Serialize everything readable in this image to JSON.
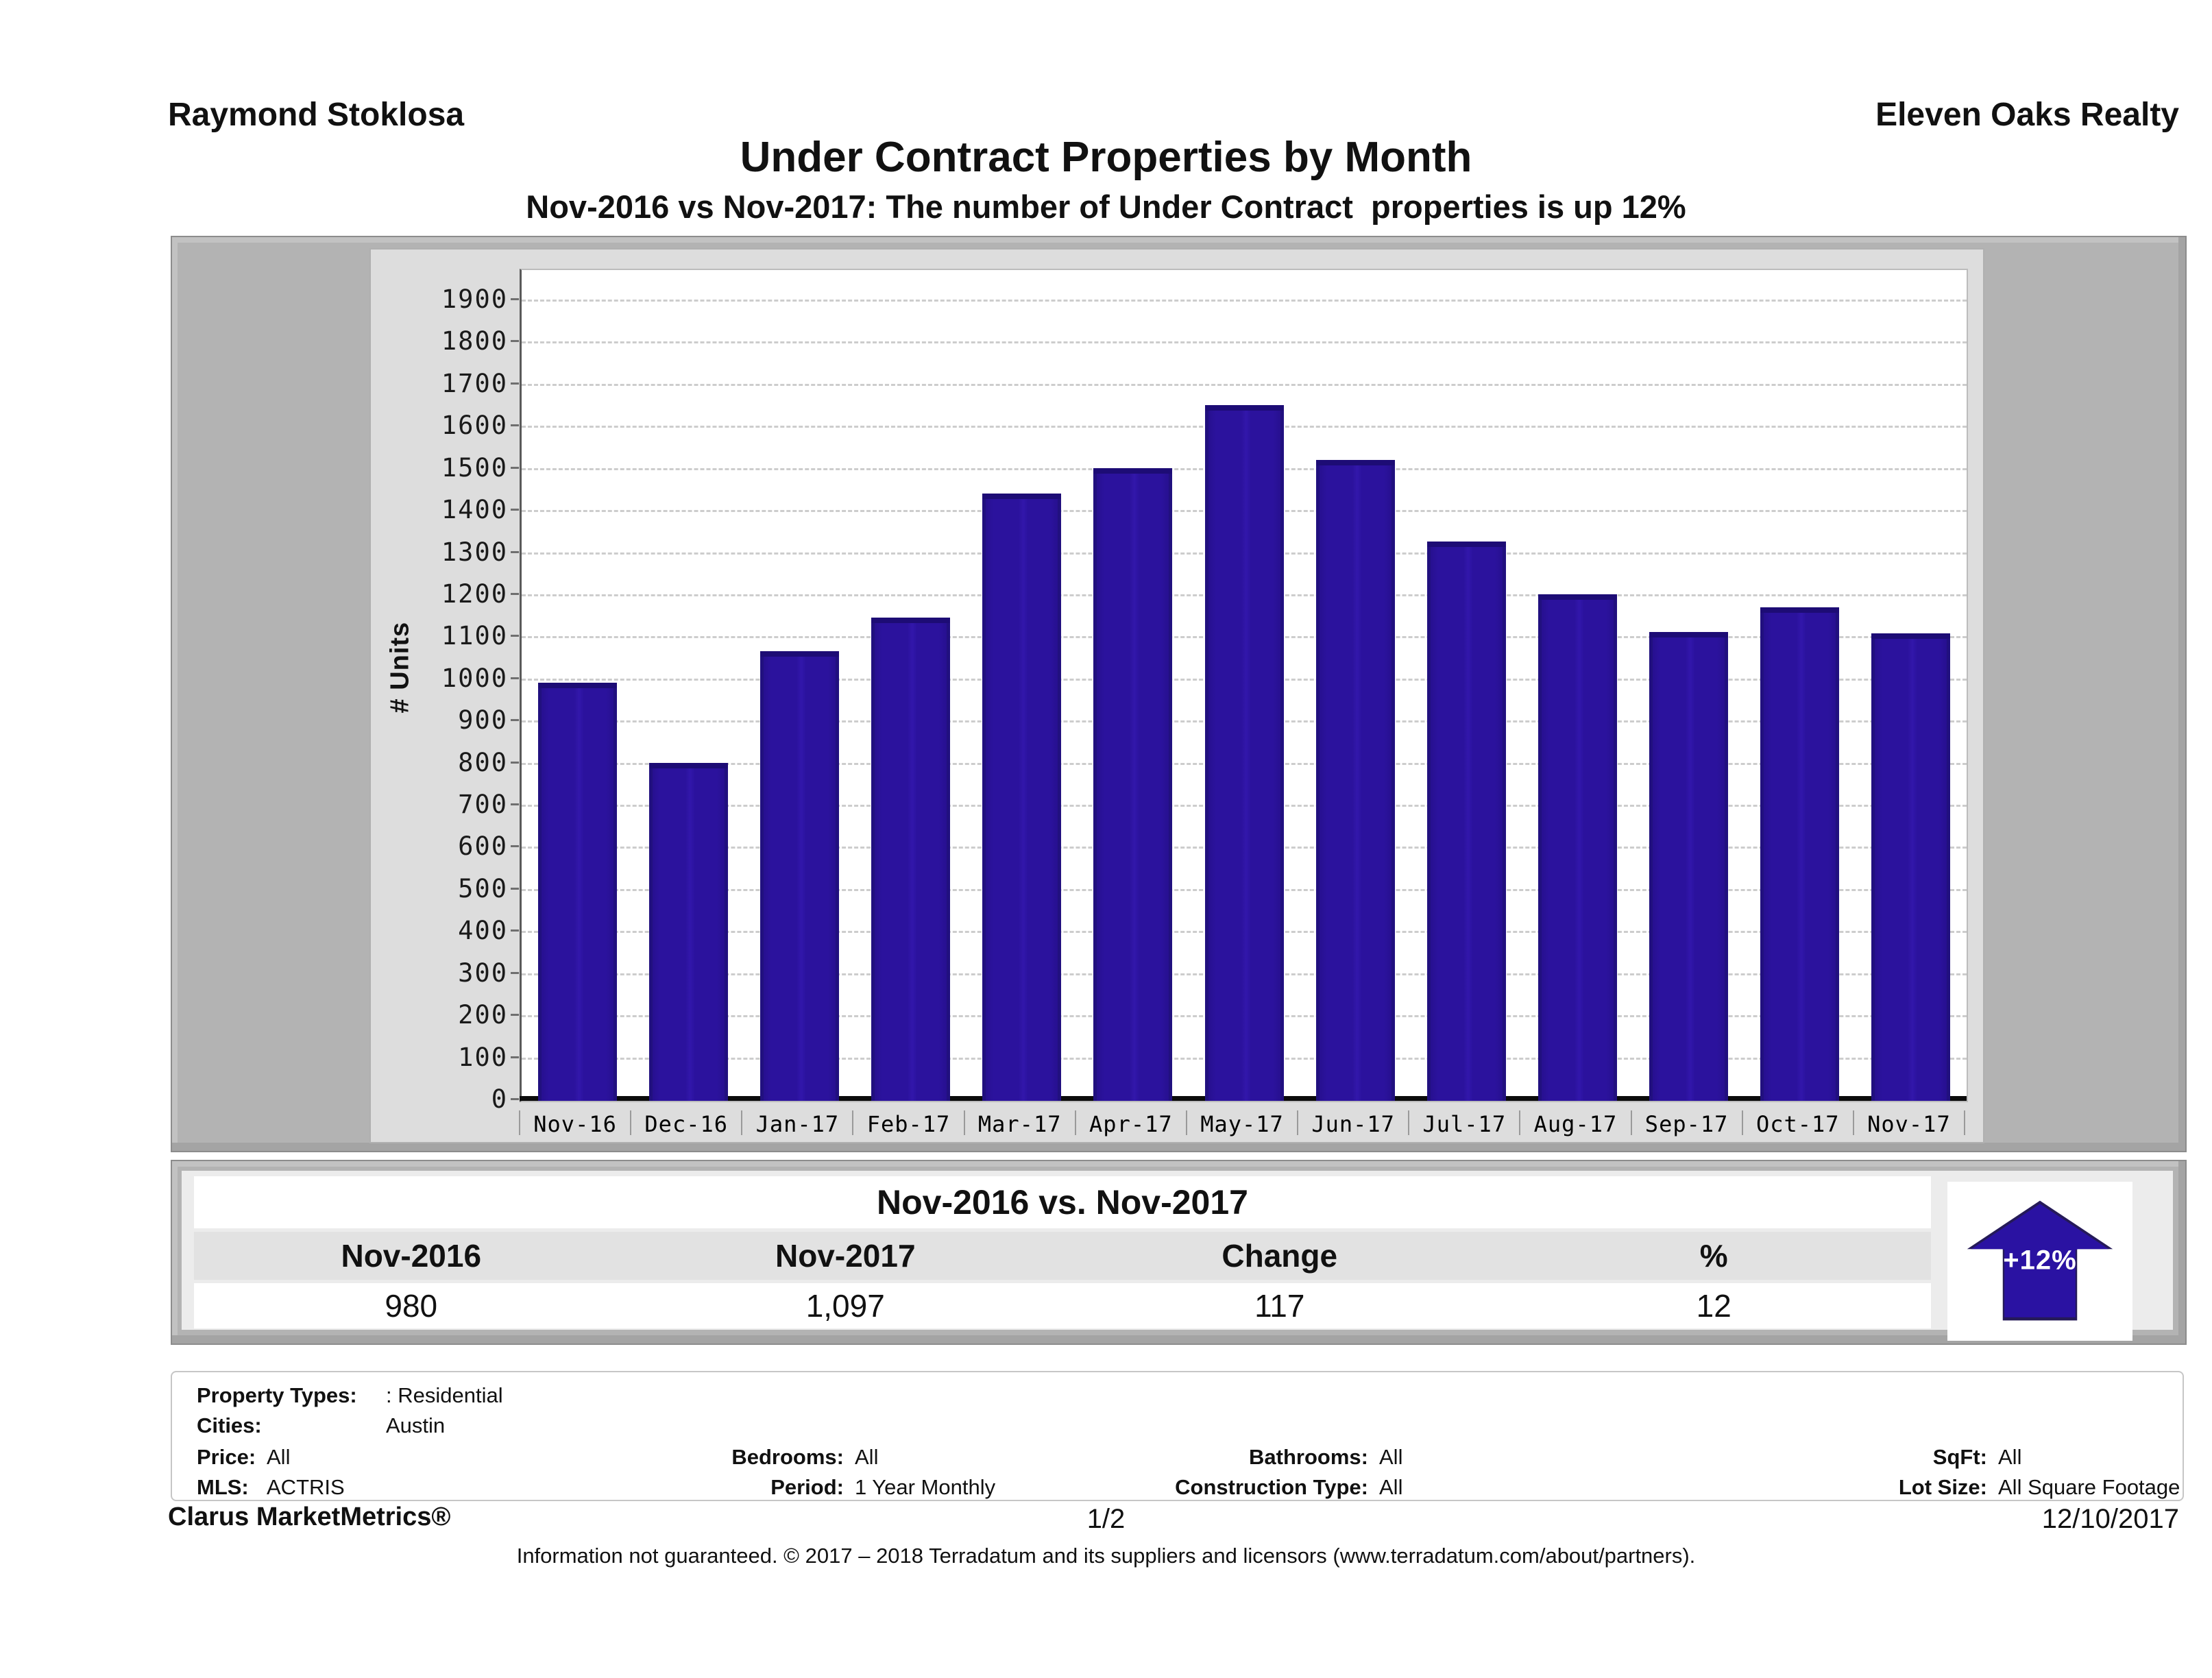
{
  "header": {
    "agent": "Raymond Stoklosa",
    "company": "Eleven Oaks Realty",
    "title": "Under Contract Properties by Month",
    "subtitle": "Nov-2016 vs Nov-2017: The number of Under Contract  properties is up 12%"
  },
  "chart_data": {
    "type": "bar",
    "title": "Under Contract Properties by Month",
    "xlabel": "",
    "ylabel": "# Units",
    "categories": [
      "Nov-16",
      "Dec-16",
      "Jan-17",
      "Feb-17",
      "Mar-17",
      "Apr-17",
      "May-17",
      "Jun-17",
      "Jul-17",
      "Aug-17",
      "Sep-17",
      "Oct-17",
      "Nov-17"
    ],
    "values": [
      980,
      790,
      1055,
      1135,
      1430,
      1490,
      1640,
      1510,
      1315,
      1190,
      1100,
      1160,
      1097
    ],
    "ylim": [
      0,
      1900
    ],
    "ytick_step": 100,
    "grid": "horizontal-dashed",
    "legend": "none",
    "bar_color": "#2b129d"
  },
  "comparison_table": {
    "title": "Nov-2016 vs. Nov-2017",
    "columns": [
      "Nov-2016",
      "Nov-2017",
      "Change",
      "%"
    ],
    "values": [
      "980",
      "1,097",
      "117",
      "12"
    ]
  },
  "change_badge": {
    "label": "+12%",
    "direction": "up",
    "color": "#2a12a2"
  },
  "filters": {
    "property_types_label": "Property Types:",
    "property_types": ": Residential",
    "cities_label": "Cities:",
    "cities": "Austin",
    "price_label": "Price:",
    "price": "All",
    "mls_label": "MLS:",
    "mls": "ACTRIS",
    "bedrooms_label": "Bedrooms:",
    "bedrooms": "All",
    "period_label": "Period:",
    "period": "1 Year Monthly",
    "bathrooms_label": "Bathrooms:",
    "bathrooms": "All",
    "construction_type_label": "Construction Type:",
    "construction_type": "All",
    "sqft_label": "SqFt:",
    "sqft": "All",
    "lot_size_label": "Lot Size:",
    "lot_size": "All Square Footage"
  },
  "footer": {
    "brand": "Clarus MarketMetrics®",
    "page": "1/2",
    "date": "12/10/2017",
    "disclaimer": "Information not guaranteed. © 2017 – 2018 Terradatum and its suppliers and licensors (www.terradatum.com/about/partners)."
  }
}
